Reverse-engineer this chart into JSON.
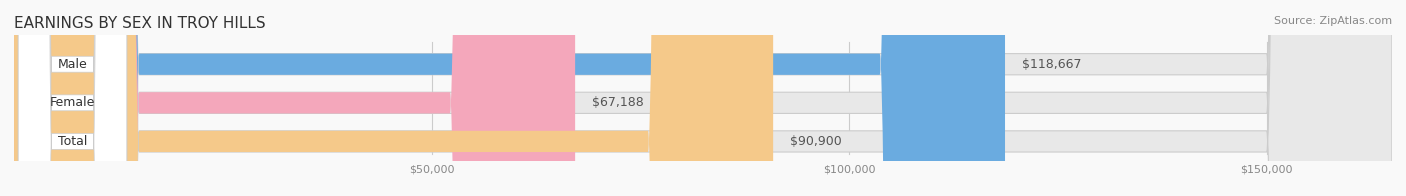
{
  "title": "EARNINGS BY SEX IN TROY HILLS",
  "source": "Source: ZipAtlas.com",
  "categories": [
    "Male",
    "Female",
    "Total"
  ],
  "values": [
    118667,
    67188,
    90900
  ],
  "bar_colors": [
    "#6aabe0",
    "#f4a7bb",
    "#f5c98a"
  ],
  "bar_bg_color": "#e8e8e8",
  "label_bg_color": "#ffffff",
  "xmin": 0,
  "xmax": 165000,
  "xticks": [
    50000,
    100000,
    150000
  ],
  "xtick_labels": [
    "$50,000",
    "$100,000",
    "$150,000"
  ],
  "fig_bg_color": "#f9f9f9",
  "bar_height": 0.55,
  "title_fontsize": 11,
  "source_fontsize": 8,
  "label_fontsize": 9,
  "value_fontsize": 9,
  "tick_fontsize": 8,
  "title_color": "#333333",
  "source_color": "#888888",
  "tick_color": "#aaaaaa",
  "value_color_inside": "#ffffff",
  "value_color_outside": "#555555"
}
